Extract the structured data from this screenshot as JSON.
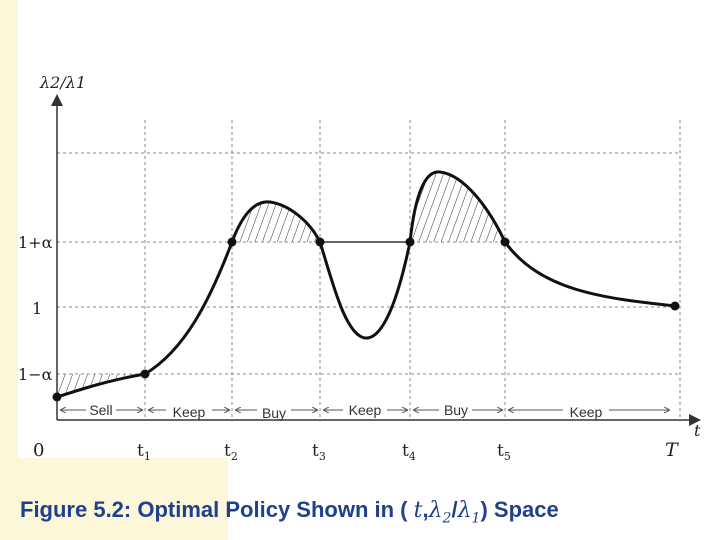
{
  "diagram": {
    "y_axis_label": "λ2/λ1",
    "y_ticks": [
      {
        "label": "1+α"
      },
      {
        "label": "1"
      },
      {
        "label": "1−α"
      }
    ],
    "x_origin_label": "0",
    "x_ticks": [
      {
        "main": "t",
        "sub": "1"
      },
      {
        "main": "t",
        "sub": "2"
      },
      {
        "main": "t",
        "sub": "3"
      },
      {
        "main": "t",
        "sub": "4"
      },
      {
        "main": "t",
        "sub": "5"
      }
    ],
    "x_end_label": "T",
    "x_axis_label": "t",
    "segments": [
      "Sell",
      "Keep",
      "Buy",
      "Keep",
      "Buy",
      "Keep"
    ]
  },
  "caption": {
    "prefix": "Figure 5.2: Optimal Policy Shown in (",
    "t": "t",
    "comma": ",",
    "lambda2": "λ",
    "sub2": "2",
    "slash": "/",
    "lambda1": "λ",
    "sub1": "1",
    "suffix": ") Space"
  }
}
